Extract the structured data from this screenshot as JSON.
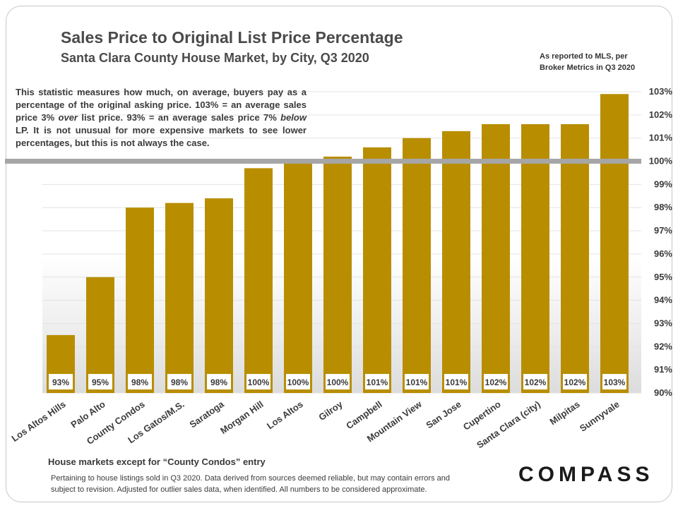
{
  "header": {
    "title": "Sales Price to Original List Price Percentage",
    "subtitle": "Santa Clara County House Market, by City, Q3 2020",
    "source_line1": "As reported to MLS, per",
    "source_line2": "Broker Metrics in Q3 2020"
  },
  "note": {
    "part1": "This statistic measures how much, on average, buyers pay as a percentage of the original asking price. 103% = an average sales price 3% ",
    "em1": "over",
    "part2": " list price. 93% = an average sales price 7% ",
    "em2": "below",
    "part3": " LP. It is not unusual for more expensive markets to see lower percentages, but this is not always the case."
  },
  "axis_caption": "House markets except for “County Condos” entry",
  "footer": {
    "line1": "Pertaining to house listings sold in Q3 2020. Data derived from sources deemed reliable, but may contain errors and",
    "line2": "subject to revision. Adjusted for outlier sales data, when identified. All numbers to be considered approximate."
  },
  "logo": "COMPASS",
  "colors": {
    "bar": "#b88e00",
    "reference_line": "#a6a6a6",
    "gridline": "#e3e3e3",
    "text": "#3a3a3a"
  },
  "chart_data": {
    "type": "bar",
    "categories": [
      "Los Altos Hills",
      "Palo Alto",
      "County Condos",
      "Los Gatos/M.S.",
      "Saratoga",
      "Morgan Hill",
      "Los Altos",
      "Gilroy",
      "Campbell",
      "Mountain View",
      "San Jose",
      "Cupertino",
      "Santa Clara (city)",
      "Milpitas",
      "Sunnyvale"
    ],
    "values": [
      92.5,
      95.0,
      98.0,
      98.2,
      98.4,
      99.7,
      99.9,
      100.2,
      100.6,
      101.0,
      101.3,
      101.6,
      101.6,
      101.6,
      102.9
    ],
    "data_labels": [
      "93%",
      "95%",
      "98%",
      "98%",
      "98%",
      "100%",
      "100%",
      "100%",
      "101%",
      "101%",
      "101%",
      "102%",
      "102%",
      "102%",
      "103%"
    ],
    "ylim": [
      90,
      103
    ],
    "yticks": [
      90,
      91,
      92,
      93,
      94,
      95,
      96,
      97,
      98,
      99,
      100,
      101,
      102,
      103
    ],
    "ytick_labels": [
      "90%",
      "91%",
      "92%",
      "93%",
      "94%",
      "95%",
      "96%",
      "97%",
      "98%",
      "99%",
      "100%",
      "101%",
      "102%",
      "103%"
    ],
    "y_axis_side": "right",
    "reference_value": 100,
    "grid": true,
    "xlabel": "",
    "ylabel": ""
  }
}
